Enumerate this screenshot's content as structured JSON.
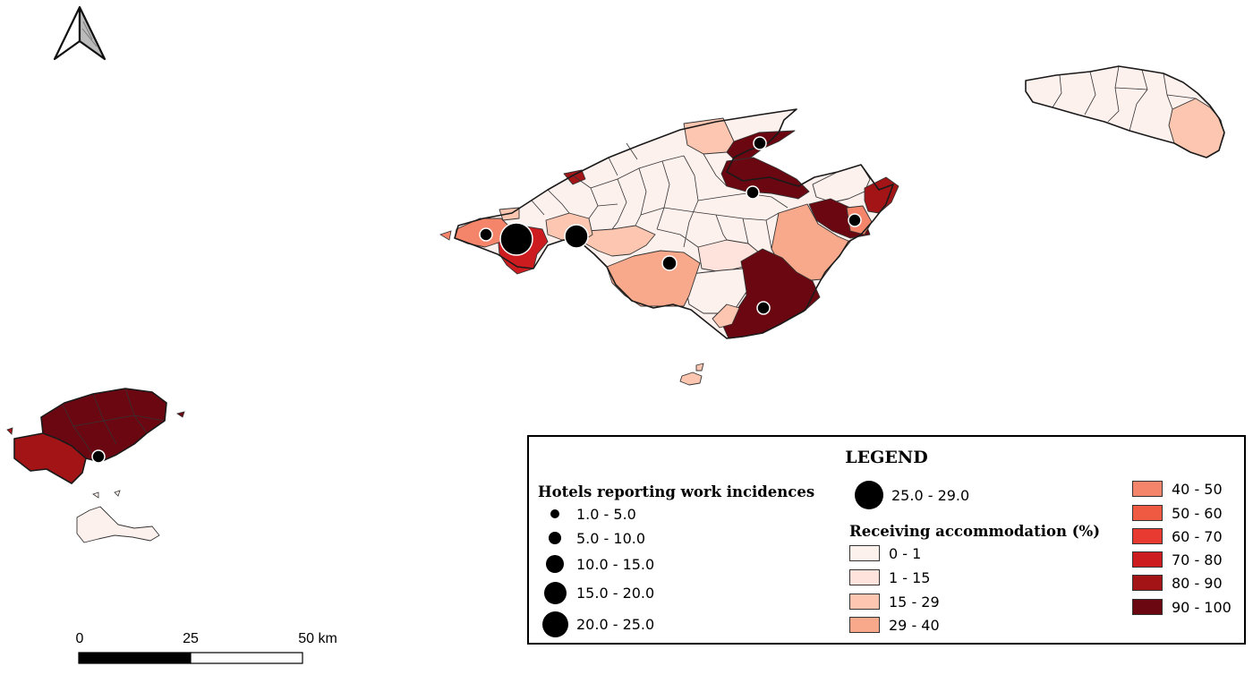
{
  "map": {
    "scale_bar": {
      "labels": [
        "0",
        "25",
        "50 km"
      ]
    },
    "north_arrow": {
      "icon": "north-arrow-icon"
    },
    "class_colors": {
      "c0": "#fdf1ee",
      "c1": "#fde3dc",
      "c2": "#fcc6b1",
      "c3": "#f8a98b",
      "c4": "#f4856a",
      "c5": "#ef5a43",
      "c6": "#e83a30",
      "c7": "#cc1c1f",
      "c8": "#a31417",
      "c9": "#6b0711"
    }
  },
  "legend": {
    "title": "LEGEND",
    "hotels": {
      "title": "Hotels reporting work incidences",
      "classes": [
        "1.0 - 5.0",
        "5.0 - 10.0",
        "10.0 - 15.0",
        "15.0 - 20.0",
        "20.0 - 25.0",
        "25.0 - 29.0"
      ]
    },
    "receiving": {
      "title": "Receiving accommodation (%)",
      "classes": [
        "0 - 1",
        "1 - 15",
        "15 - 29",
        "29 - 40",
        "40 - 50",
        "50 - 60",
        "60 - 70",
        "70 - 80",
        "80 - 90",
        "90 - 100"
      ],
      "colors": [
        "#fdf1ee",
        "#fde3dc",
        "#fcc6b1",
        "#f8a98b",
        "#f4856a",
        "#ef5a43",
        "#e83a30",
        "#cc1c1f",
        "#a31417",
        "#6b0711"
      ]
    }
  }
}
